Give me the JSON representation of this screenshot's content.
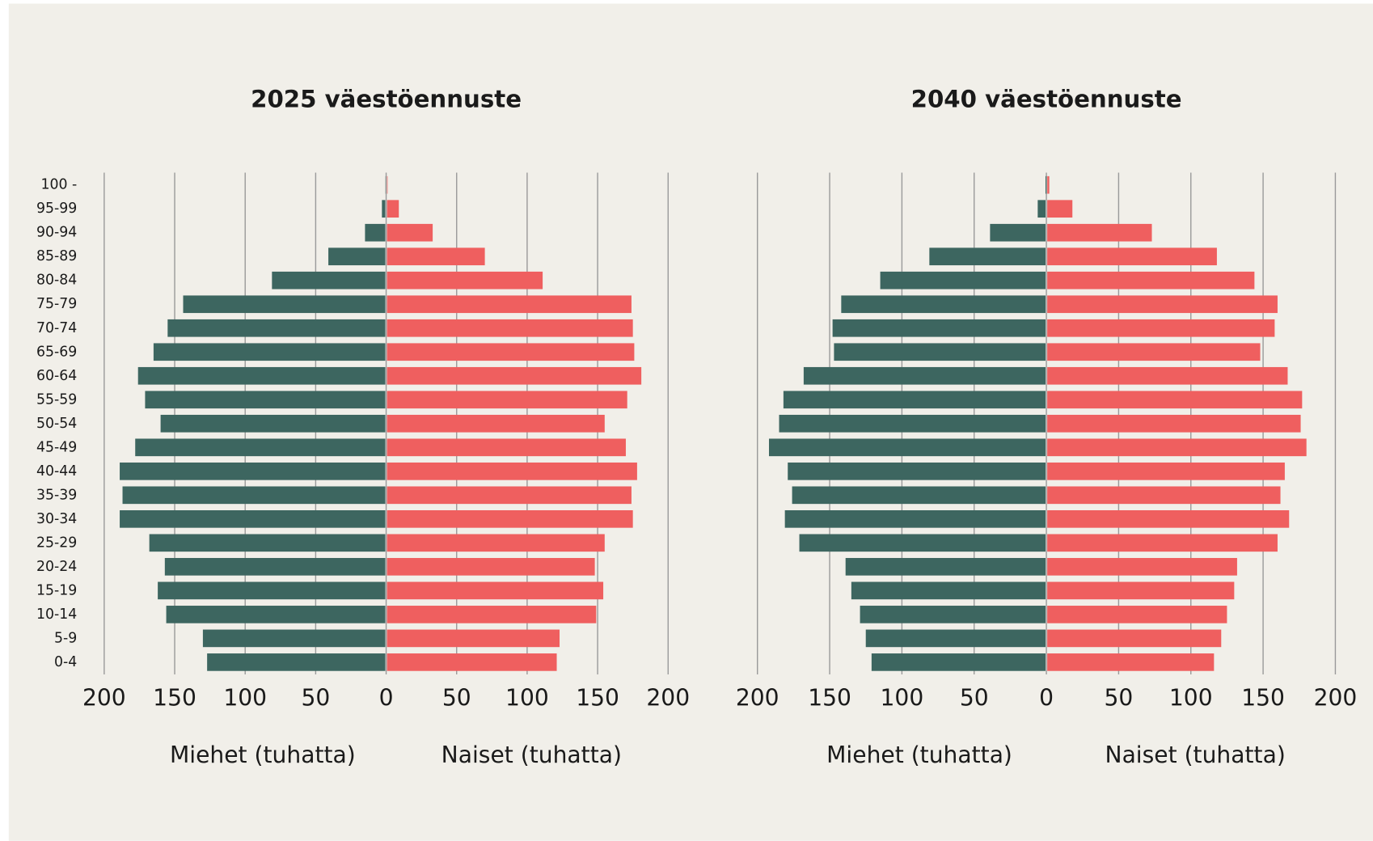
{
  "chart_data": [
    {
      "type": "pyramid",
      "title": "2025 väestöennuste",
      "categories": [
        "0-4",
        "5-9",
        "10-14",
        "15-19",
        "20-24",
        "25-29",
        "30-34",
        "35-39",
        "40-44",
        "45-49",
        "50-54",
        "55-59",
        "60-64",
        "65-69",
        "70-74",
        "75-79",
        "80-84",
        "85-89",
        "90-94",
        "95-99",
        "100 -"
      ],
      "series": [
        {
          "name": "Miehet (tuhatta)",
          "color": "#3d6660",
          "side": "left",
          "values": [
            127,
            130,
            156,
            162,
            157,
            168,
            189,
            187,
            189,
            178,
            160,
            171,
            176,
            165,
            155,
            144,
            81,
            41,
            15,
            3,
            0.5
          ]
        },
        {
          "name": "Naiset (tuhatta)",
          "color": "#ef5f5f",
          "side": "right",
          "values": [
            121,
            123,
            149,
            154,
            148,
            155,
            175,
            174,
            178,
            170,
            155,
            171,
            181,
            176,
            175,
            174,
            111,
            70,
            33,
            9,
            1
          ]
        }
      ],
      "xlim": [
        -200,
        200
      ],
      "xticks": [
        {
          "value": -200,
          "label": "200"
        },
        {
          "value": -150,
          "label": "150"
        },
        {
          "value": -100,
          "label": "100"
        },
        {
          "value": -50,
          "label": "50"
        },
        0,
        50,
        100,
        150,
        200
      ],
      "grid": true
    },
    {
      "type": "pyramid",
      "title": "2040 väestöennuste",
      "series": [
        {
          "name": "Miehet (tuhatta)",
          "color": "#3d6660",
          "side": "left",
          "values": [
            121,
            125,
            129,
            135,
            139,
            171,
            181,
            176,
            179,
            192,
            185,
            182,
            168,
            147,
            148,
            142,
            115,
            81,
            39,
            6,
            0
          ]
        },
        {
          "name": "Naiset (tuhatta)",
          "color": "#ef5f5f",
          "side": "right",
          "values": [
            116,
            121,
            125,
            130,
            132,
            160,
            168,
            162,
            165,
            180,
            176,
            177,
            167,
            148,
            158,
            160,
            144,
            118,
            73,
            18,
            2
          ]
        }
      ],
      "xlim": [
        -200,
        200
      ],
      "xticks": [
        {
          "value": -200,
          "label": "200"
        },
        {
          "value": -150,
          "label": "150"
        },
        {
          "value": -100,
          "label": "100"
        },
        {
          "value": -50,
          "label": "50"
        },
        0,
        50,
        100,
        150,
        200
      ],
      "grid": true
    }
  ]
}
